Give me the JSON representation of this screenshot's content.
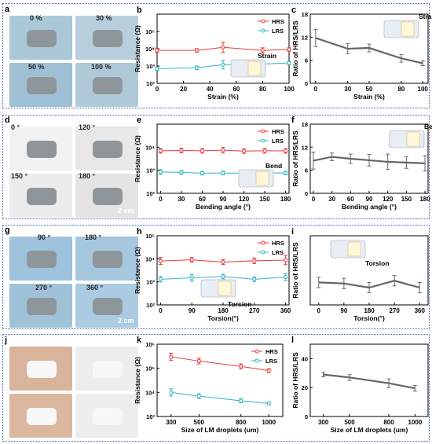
{
  "colors": {
    "hrs": "#e8393a",
    "lrs": "#2fb3c4",
    "ratio": "#666666",
    "border": "#3a5fb0"
  },
  "rows": [
    {
      "photo_label": "a",
      "photo_texts": [
        "0 %",
        "30 %",
        "50 %",
        "100 %"
      ],
      "plot_labels": [
        "b",
        "c"
      ]
    },
    {
      "photo_label": "d",
      "photo_texts": [
        "0 °",
        "120 °",
        "150 °",
        "180 °",
        "2 cm"
      ],
      "plot_labels": [
        "e",
        "f"
      ]
    },
    {
      "photo_label": "g",
      "photo_texts": [
        "90 °",
        "180 °",
        "270 °",
        "360 °",
        "2 cm"
      ],
      "plot_labels": [
        "h",
        "i"
      ]
    },
    {
      "photo_label": "j",
      "photo_texts": [],
      "plot_labels": [
        "k",
        "l"
      ]
    }
  ],
  "chart_data": [
    {
      "id": "b",
      "type": "line",
      "xlabel": "Strain (%)",
      "ylabel": "Resistance (Ω)",
      "x": [
        0,
        30,
        50,
        80,
        100
      ],
      "xticks": [
        0,
        20,
        40,
        60,
        80,
        100
      ],
      "xlim": [
        0,
        100
      ],
      "ylog": true,
      "ylim": [
        100,
        1000000
      ],
      "yticks": [
        100,
        1000,
        10000,
        100000
      ],
      "ytick_labels": [
        "10²",
        "10³",
        "10⁴",
        "10⁵"
      ],
      "legend": [
        "HRS",
        "LRS"
      ],
      "annotation": "Strain",
      "series": [
        {
          "name": "HRS",
          "values": [
            8000,
            8000,
            12000,
            8000,
            9000
          ],
          "err": [
            0.12,
            0.1,
            0.3,
            0.15,
            0.1
          ]
        },
        {
          "name": "LRS",
          "values": [
            700,
            800,
            1200,
            1300,
            1500
          ],
          "err": [
            0.1,
            0.1,
            0.25,
            0.15,
            0.1
          ]
        }
      ]
    },
    {
      "id": "c",
      "type": "line",
      "xlabel": "Strain (%)",
      "ylabel": "Ratio of HRS/LRS",
      "x": [
        0,
        30,
        50,
        80,
        100
      ],
      "xticks": [
        0,
        30,
        50,
        80,
        100
      ],
      "xlim": [
        -5,
        105
      ],
      "ylim": [
        0,
        18
      ],
      "yticks": [
        0,
        6,
        12,
        18
      ],
      "annotation": "Strain",
      "series": [
        {
          "name": "ratio",
          "values": [
            11.8,
            9,
            9.2,
            6.5,
            5.2
          ],
          "err": [
            2.2,
            1.3,
            1,
            1,
            0.6
          ]
        }
      ]
    },
    {
      "id": "e",
      "type": "line",
      "xlabel": "Bending angle (°)",
      "ylabel": "Resistance (Ω)",
      "x": [
        0,
        30,
        60,
        90,
        120,
        150,
        180
      ],
      "xticks": [
        0,
        30,
        60,
        90,
        120,
        150,
        180
      ],
      "xlim": [
        -5,
        185
      ],
      "ylog": true,
      "ylim": [
        100,
        100000
      ],
      "yticks": [
        100,
        1000,
        10000
      ],
      "ytick_labels": [
        "10²",
        "10³",
        "10⁴"
      ],
      "legend": [
        "HRS",
        "LRS"
      ],
      "annotation": "Bend",
      "series": [
        {
          "name": "HRS",
          "values": [
            7000,
            7200,
            7000,
            7400,
            6800,
            7000,
            6900
          ],
          "err": [
            0.1,
            0.1,
            0.1,
            0.12,
            0.1,
            0.1,
            0.1
          ]
        },
        {
          "name": "LRS",
          "values": [
            850,
            800,
            750,
            760,
            740,
            770,
            760
          ],
          "err": [
            0.1,
            0.08,
            0.08,
            0.08,
            0.08,
            0.08,
            0.08
          ]
        }
      ]
    },
    {
      "id": "f",
      "type": "line",
      "xlabel": "Bending angle (°)",
      "ylabel": "Ratio of HRS/LRS",
      "x": [
        0,
        30,
        60,
        90,
        120,
        150,
        180
      ],
      "xticks": [
        0,
        30,
        60,
        90,
        120,
        150,
        180
      ],
      "xlim": [
        -5,
        185
      ],
      "ylim": [
        0,
        18
      ],
      "yticks": [
        0,
        6,
        12,
        18
      ],
      "annotation": "Bend",
      "series": [
        {
          "name": "ratio",
          "values": [
            8.5,
            9.5,
            9,
            8.6,
            8.2,
            8,
            7.8
          ],
          "err": [
            2.2,
            1,
            1.2,
            1.5,
            2,
            1.5,
            2
          ]
        }
      ]
    },
    {
      "id": "h",
      "type": "line",
      "xlabel": "Torsion(°)",
      "ylabel": "Resistance (Ω)",
      "x": [
        0,
        90,
        180,
        270,
        360
      ],
      "xticks": [
        0,
        90,
        180,
        270,
        360
      ],
      "xlim": [
        -10,
        370
      ],
      "ylog": true,
      "ylim": [
        100,
        100000
      ],
      "yticks": [
        100,
        1000,
        10000,
        100000
      ],
      "ytick_labels": [
        "10²",
        "10³",
        "10⁴",
        "10⁵"
      ],
      "legend": [
        "HRS",
        "LRS"
      ],
      "annotation": "Torsion",
      "series": [
        {
          "name": "HRS",
          "values": [
            8000,
            9000,
            7200,
            8200,
            8800
          ],
          "err": [
            0.15,
            0.1,
            0.1,
            0.12,
            0.2
          ]
        },
        {
          "name": "LRS",
          "values": [
            1300,
            1500,
            1700,
            1300,
            1600
          ],
          "err": [
            0.12,
            0.15,
            0.1,
            0.1,
            0.15
          ]
        }
      ]
    },
    {
      "id": "i",
      "type": "line",
      "xlabel": "Torsion(°)",
      "ylabel": "Ratio of HRS/LRS",
      "x": [
        0,
        90,
        180,
        270,
        360
      ],
      "xticks": [
        0,
        90,
        180,
        270,
        360
      ],
      "xlim": [
        -30,
        390
      ],
      "ylim": [
        0,
        20
      ],
      "yticks": [],
      "annotation": "Torsion",
      "series": [
        {
          "name": "ratio",
          "values": [
            6.5,
            6.2,
            5,
            7,
            5
          ],
          "err": [
            1.5,
            1.5,
            1.5,
            1.5,
            1.5
          ]
        }
      ]
    },
    {
      "id": "k",
      "type": "line",
      "xlabel": "Size of LM droplets (um)",
      "ylabel": "Resistance (Ω)",
      "x": [
        300,
        500,
        800,
        1000
      ],
      "xticks": [
        300,
        500,
        800,
        1000
      ],
      "xlim": [
        200,
        1100
      ],
      "ylog": true,
      "ylim": [
        1000,
        1000000
      ],
      "yticks": [
        1000,
        10000,
        100000,
        1000000
      ],
      "ytick_labels": [
        "10³",
        "10⁴",
        "10⁵",
        "10⁶"
      ],
      "legend": [
        "HRS",
        "LRS"
      ],
      "series": [
        {
          "name": "HRS",
          "values": [
            300000,
            200000,
            120000,
            80000
          ],
          "err": [
            0.15,
            0.12,
            0.1,
            0.08
          ]
        },
        {
          "name": "LRS",
          "values": [
            10000,
            7000,
            4500,
            3500
          ],
          "err": [
            0.15,
            0.1,
            0.08,
            0.06
          ]
        }
      ]
    },
    {
      "id": "l",
      "type": "line",
      "xlabel": "Size of LM droplets (um)",
      "ylabel": "Ratio of HRS/LRS",
      "x": [
        300,
        500,
        800,
        1000
      ],
      "xticks": [
        300,
        500,
        800,
        1000
      ],
      "xlim": [
        200,
        1100
      ],
      "ylim": [
        0,
        50
      ],
      "yticks": [
        0,
        20,
        40
      ],
      "series": [
        {
          "name": "ratio",
          "values": [
            29,
            27,
            23,
            19.5
          ],
          "err": [
            1.5,
            2,
            3,
            2
          ]
        }
      ]
    }
  ]
}
